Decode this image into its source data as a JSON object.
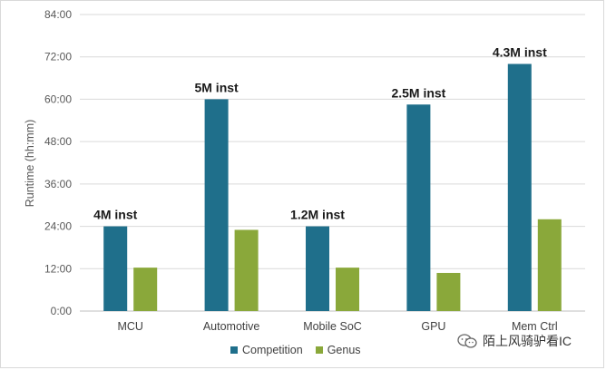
{
  "chart_data": {
    "type": "bar",
    "categories": [
      "MCU",
      "Automotive",
      "Mobile SoC",
      "GPU",
      "Mem Ctrl"
    ],
    "series": [
      {
        "name": "Competition",
        "color": "#1f6f8b",
        "values": [
          24.0,
          60.0,
          24.0,
          58.5,
          70.0
        ]
      },
      {
        "name": "Genus",
        "color": "#8aa83a",
        "values": [
          12.3,
          23.0,
          12.3,
          10.8,
          26.0
        ]
      }
    ],
    "data_labels": [
      "4M inst",
      "5M inst",
      "1.2M inst",
      "2.5M inst",
      "4.3M inst"
    ],
    "yticks": [
      "0:00",
      "12:00",
      "24:00",
      "36:00",
      "48:00",
      "60:00",
      "72:00",
      "84:00"
    ],
    "ylabel": "Runtime (hh:mm)",
    "xlabel": "",
    "ylim": [
      0,
      84
    ],
    "grid": true,
    "legend_position": "bottom"
  },
  "watermark": {
    "text": "陌上风骑驴看IC"
  }
}
